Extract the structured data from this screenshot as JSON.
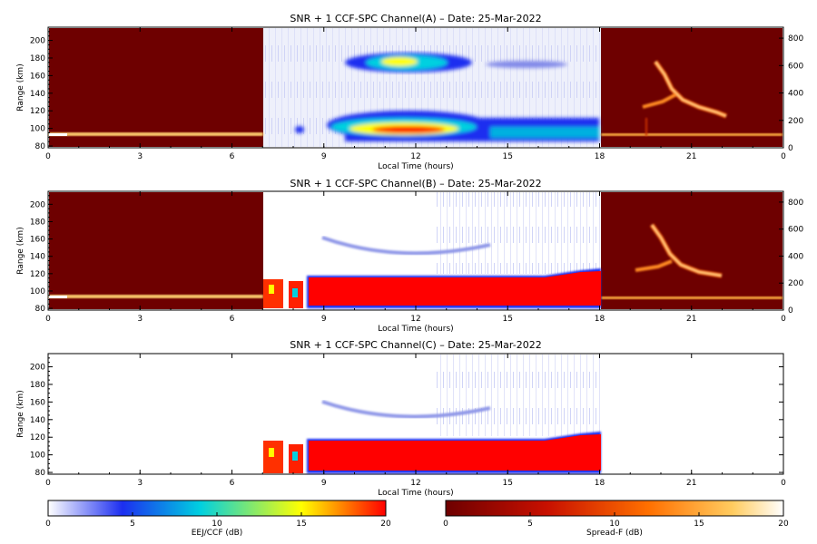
{
  "chart_data": [
    {
      "type": "heatmap",
      "title": "SNR + 1 CCF-SPC Channel(A) – Date: 25-Mar-2022",
      "xlabel": "Local Time (hours)",
      "ylabel": "Range (km)",
      "xlim": [
        0,
        24
      ],
      "ylim_left": [
        78,
        215
      ],
      "ylim_right": [
        0,
        880
      ],
      "x_ticks": [
        "0",
        "3",
        "6",
        "9",
        "12",
        "15",
        "18",
        "21",
        "0"
      ],
      "y_ticks_left": [
        "80",
        "100",
        "120",
        "140",
        "160",
        "180",
        "200"
      ],
      "y_ticks_right": [
        "0",
        "200",
        "400",
        "600",
        "800"
      ],
      "day_window_hours": [
        7,
        18
      ],
      "night_colormap": "Spread-F (dB)",
      "day_colormap": "EEJ/CCF (dB)",
      "features": [
        {
          "kind": "ccf-echo",
          "hours": [
            10,
            14
          ],
          "range_km": [
            170,
            185
          ]
        },
        {
          "kind": "eej-echo",
          "hours": [
            9,
            18
          ],
          "range_km": [
            88,
            118
          ]
        },
        {
          "kind": "spread-f",
          "hours": [
            19.5,
            22.5
          ],
          "height_km": [
            150,
            650
          ]
        }
      ]
    },
    {
      "type": "heatmap",
      "title": "SNR + 1 CCF-SPC Channel(B) – Date: 25-Mar-2022",
      "xlabel": "Local Time (hours)",
      "ylabel": "Range (km)",
      "xlim": [
        0,
        24
      ],
      "ylim_left": [
        78,
        215
      ],
      "ylim_right": [
        0,
        880
      ],
      "x_ticks": [
        "0",
        "3",
        "6",
        "9",
        "12",
        "15",
        "18",
        "21",
        "0"
      ],
      "y_ticks_left": [
        "80",
        "100",
        "120",
        "140",
        "160",
        "180",
        "200"
      ],
      "y_ticks_right": [
        "0",
        "200",
        "400",
        "600",
        "800"
      ],
      "day_window_hours": [
        7,
        18
      ],
      "features": [
        {
          "kind": "eej-saturated",
          "hours": [
            7.7,
            18
          ],
          "range_km": [
            83,
            120
          ]
        },
        {
          "kind": "ccf-arc",
          "hours": [
            9,
            14
          ],
          "range_km": [
            140,
            155
          ]
        },
        {
          "kind": "spread-f",
          "hours": [
            19.5,
            22.5
          ],
          "height_km": [
            150,
            650
          ]
        }
      ]
    },
    {
      "type": "heatmap",
      "title": "SNR + 1 CCF-SPC Channel(C) – Date: 25-Mar-2022",
      "xlabel": "Local Time (hours)",
      "ylabel": "Range (km)",
      "xlim": [
        0,
        24
      ],
      "ylim_left": [
        78,
        215
      ],
      "x_ticks": [
        "0",
        "3",
        "6",
        "9",
        "12",
        "15",
        "18",
        "21",
        "0"
      ],
      "y_ticks_left": [
        "80",
        "100",
        "120",
        "140",
        "160",
        "180",
        "200"
      ],
      "day_window_hours": [
        7,
        18
      ],
      "features": [
        {
          "kind": "eej-saturated",
          "hours": [
            7.7,
            18
          ],
          "range_km": [
            83,
            120
          ]
        },
        {
          "kind": "ccf-arc",
          "hours": [
            9,
            14
          ],
          "range_km": [
            140,
            155
          ]
        }
      ]
    }
  ],
  "colorbars": [
    {
      "label": "EEJ/CCF (dB)",
      "ticks": [
        "0",
        "5",
        "10",
        "15",
        "20"
      ],
      "range": [
        0,
        20
      ],
      "colors": [
        "#ffffff",
        "#1c2ef0",
        "#00d0e0",
        "#ffff00",
        "#ff0000"
      ]
    },
    {
      "label": "Spread-F (dB)",
      "ticks": [
        "0",
        "5",
        "10",
        "15",
        "20"
      ],
      "range": [
        0,
        20
      ],
      "colors": [
        "#6e0000",
        "#c81000",
        "#ff7000",
        "#ffcc60",
        "#ffffff"
      ]
    }
  ]
}
